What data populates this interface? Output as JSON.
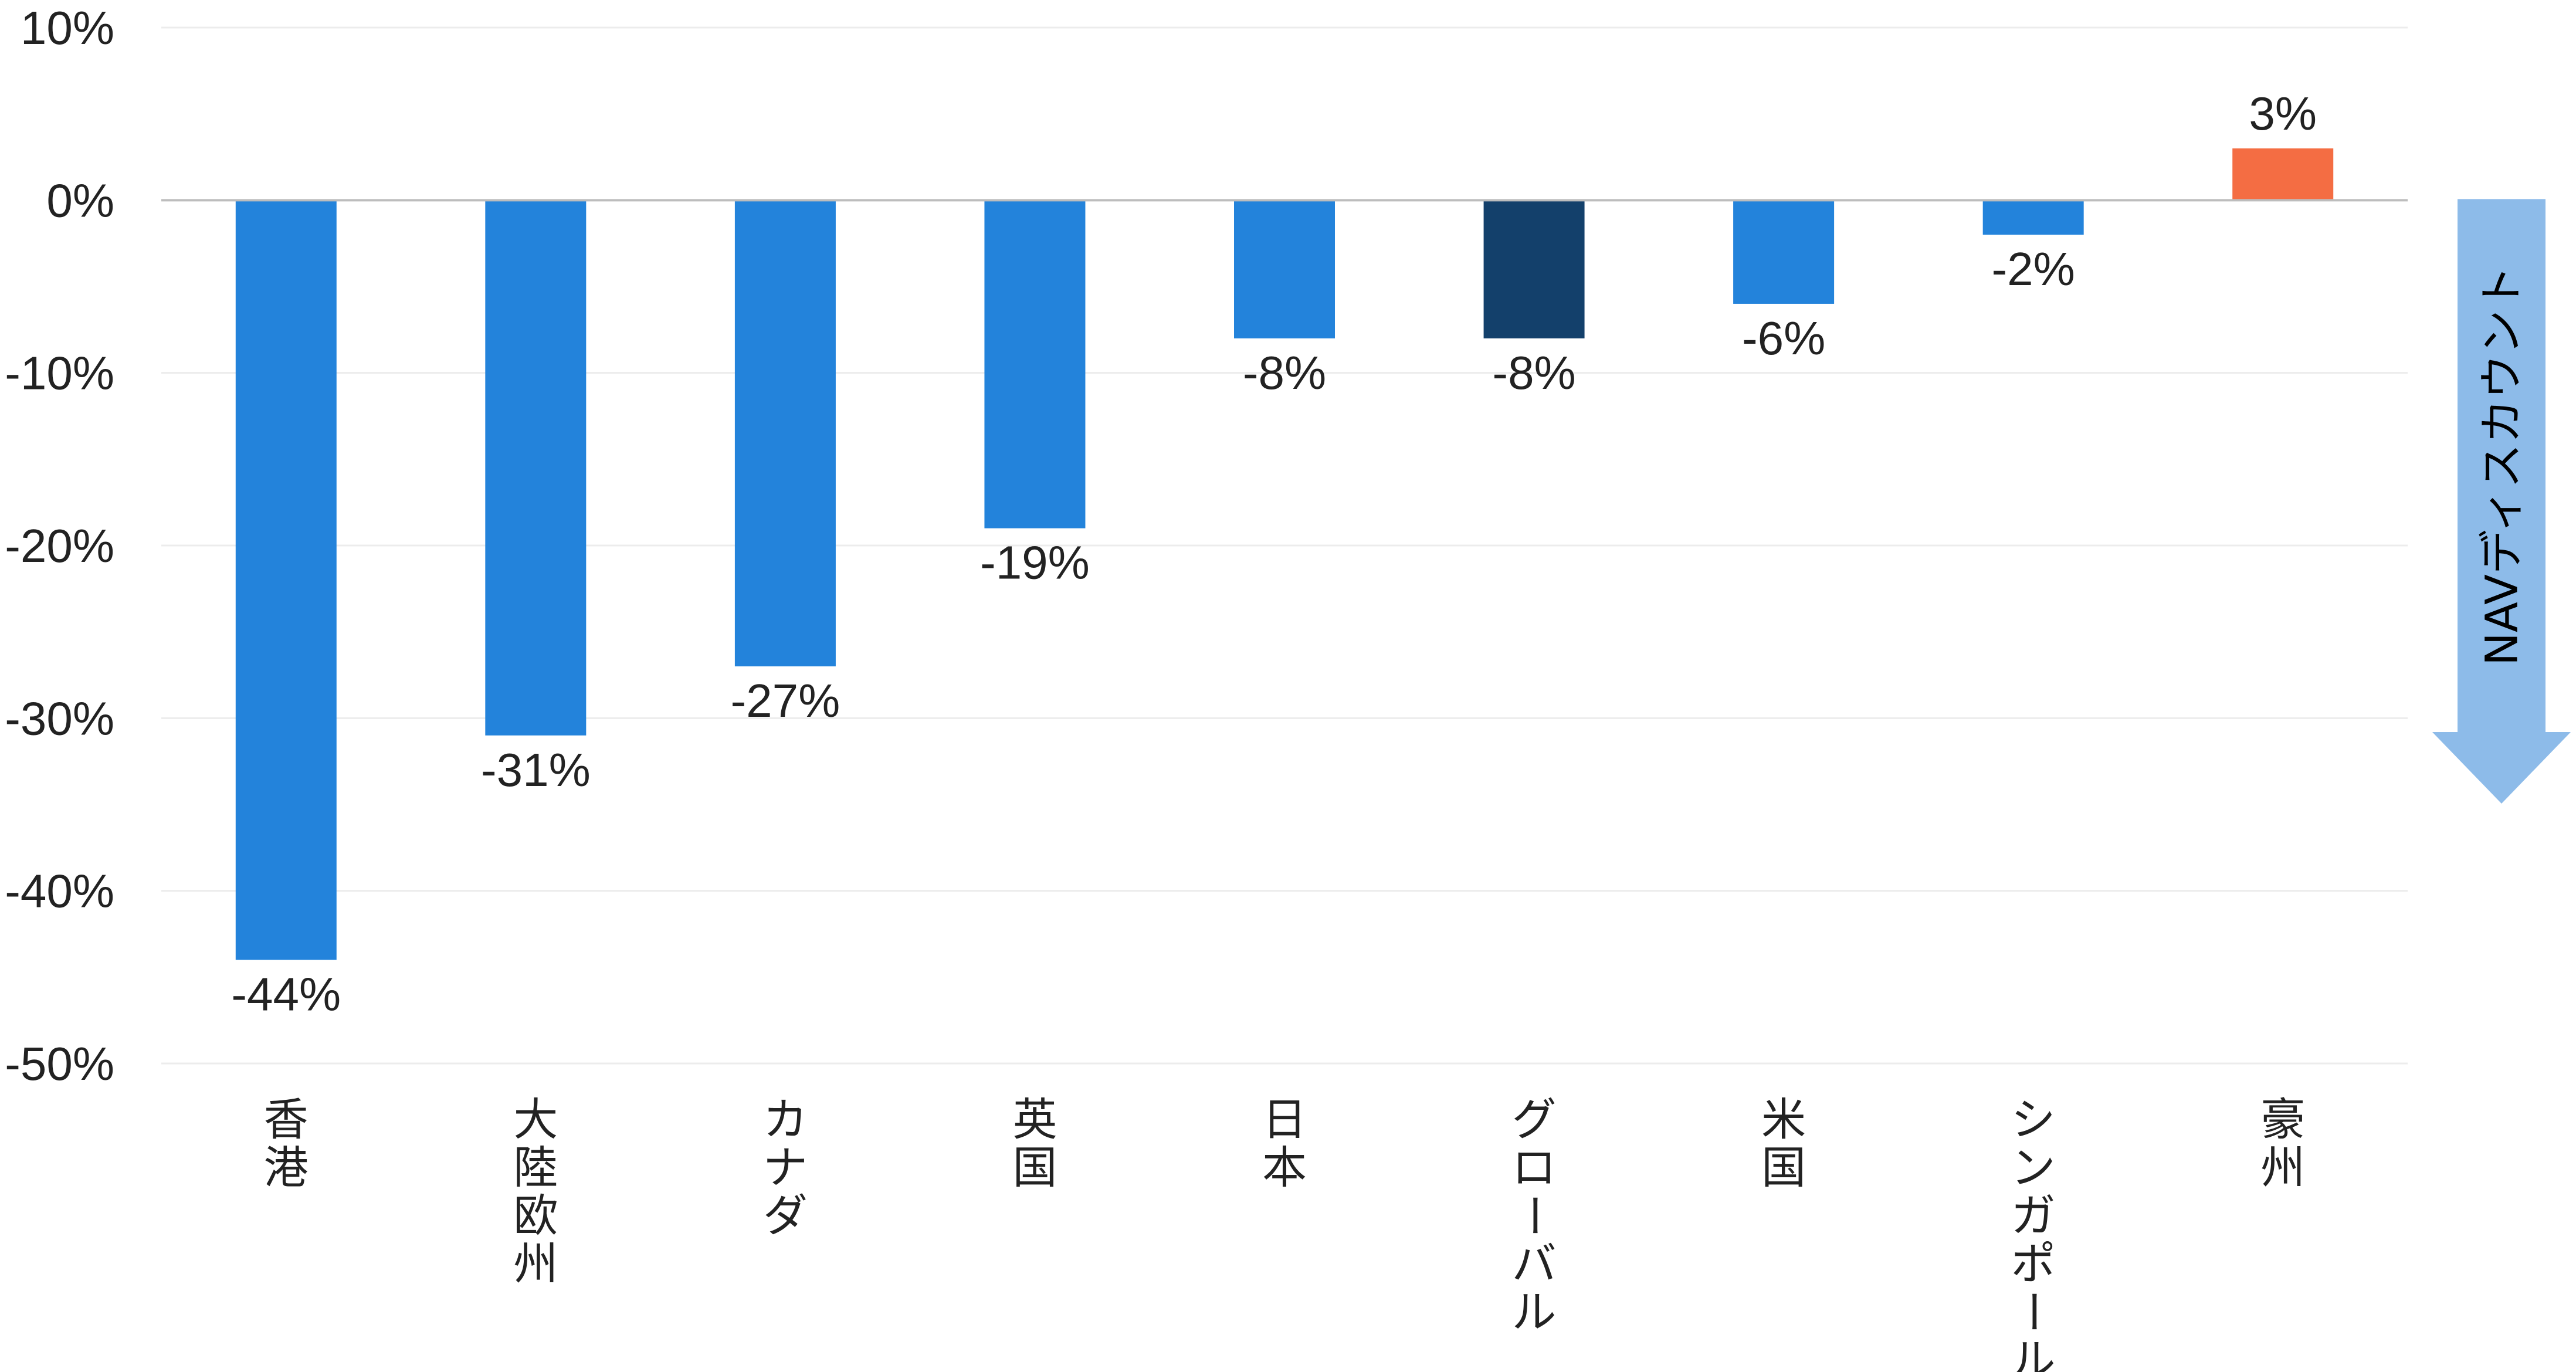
{
  "chart_data": {
    "type": "bar",
    "categories": [
      "香港",
      "大陸欧州",
      "カナダ",
      "英国",
      "日本",
      "グローバル",
      "米国",
      "シンガポール",
      "豪州"
    ],
    "values": [
      -44,
      -31,
      -27,
      -19,
      -8,
      -8,
      -6,
      -2,
      3
    ],
    "data_labels": [
      "-44%",
      "-31%",
      "-27%",
      "-19%",
      "-8%",
      "-8%",
      "-6%",
      "-2%",
      "3%"
    ],
    "bar_colors": [
      "#2383DB",
      "#2383DB",
      "#2383DB",
      "#2383DB",
      "#2383DB",
      "#13406B",
      "#2383DB",
      "#2383DB",
      "#F46D43"
    ],
    "ylim": [
      -50,
      10
    ],
    "y_ticks": [
      10,
      0,
      -10,
      -20,
      -30,
      -40,
      -50
    ],
    "y_tick_labels": [
      "10%",
      "0%",
      "-10%",
      "-20%",
      "-30%",
      "-40%",
      "-50%"
    ],
    "grid": true,
    "title": "",
    "xlabel": "",
    "ylabel": "",
    "category_label_orientation": "vertical",
    "annotation": {
      "text": "NAVディスカウント",
      "shape": "down-arrow",
      "color": "#8DBBE9"
    }
  }
}
